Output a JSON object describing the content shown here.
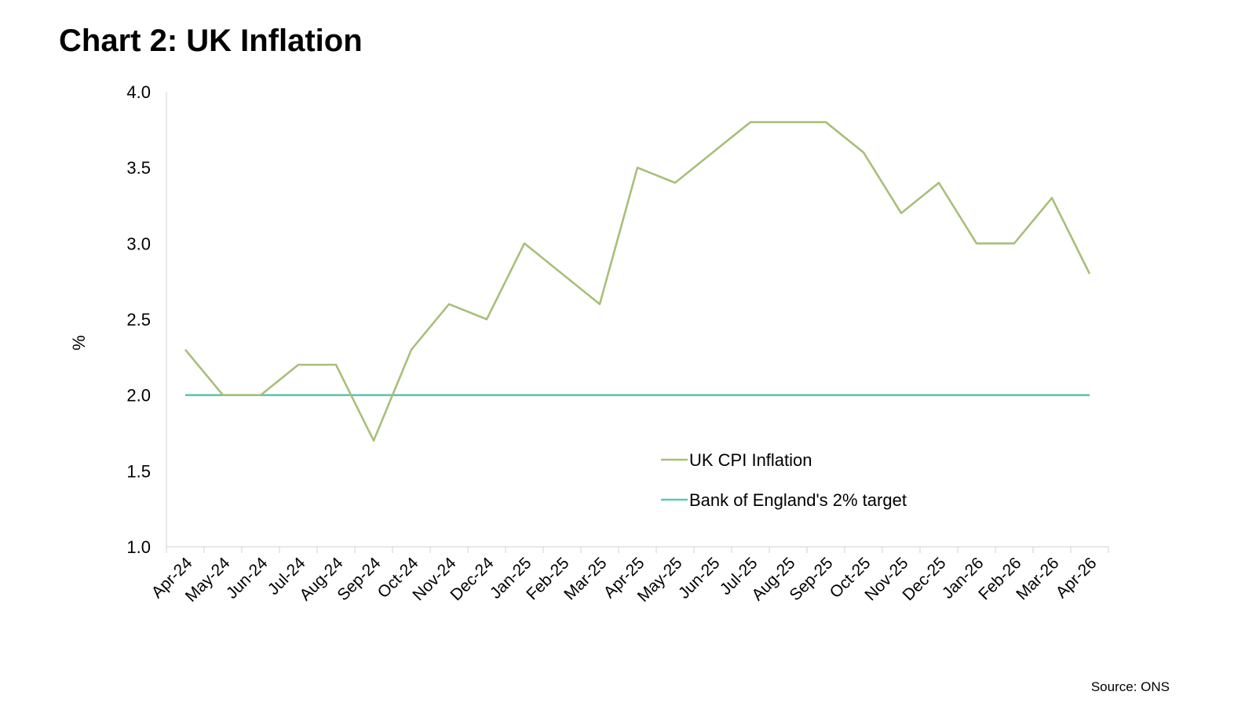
{
  "title": "Chart 2: UK Inflation",
  "source": "Source: ONS",
  "chart_data": {
    "type": "line",
    "ylabel": "%",
    "ylim": [
      1.0,
      4.0
    ],
    "yticks": [
      "1.0",
      "1.5",
      "2.0",
      "2.5",
      "3.0",
      "3.5",
      "4.0"
    ],
    "categories": [
      "Apr-24",
      "May-24",
      "Jun-24",
      "Jul-24",
      "Aug-24",
      "Sep-24",
      "Oct-24",
      "Nov-24",
      "Dec-24",
      "Jan-25",
      "Feb-25",
      "Mar-25",
      "Apr-25",
      "May-25",
      "Jun-25",
      "Jul-25",
      "Aug-25",
      "Sep-25",
      "Oct-25",
      "Nov-25",
      "Dec-25",
      "Jan-26",
      "Feb-26",
      "Mar-26",
      "Apr-26"
    ],
    "series": [
      {
        "name": "UK CPI Inflation",
        "color": "#a8bf7a",
        "values": [
          2.3,
          2.0,
          2.0,
          2.2,
          2.2,
          1.7,
          2.3,
          2.6,
          2.5,
          3.0,
          2.8,
          2.6,
          3.5,
          3.4,
          3.6,
          3.8,
          3.8,
          3.8,
          3.6,
          3.2,
          3.4,
          3.0,
          3.0,
          3.3,
          2.8
        ]
      },
      {
        "name": "Bank of England's 2% target",
        "color": "#5cc7b5",
        "values": [
          2.0,
          2.0,
          2.0,
          2.0,
          2.0,
          2.0,
          2.0,
          2.0,
          2.0,
          2.0,
          2.0,
          2.0,
          2.0,
          2.0,
          2.0,
          2.0,
          2.0,
          2.0,
          2.0,
          2.0,
          2.0,
          2.0,
          2.0,
          2.0,
          2.0
        ]
      }
    ],
    "legend_position": "bottom-center-inside",
    "grid": false
  }
}
